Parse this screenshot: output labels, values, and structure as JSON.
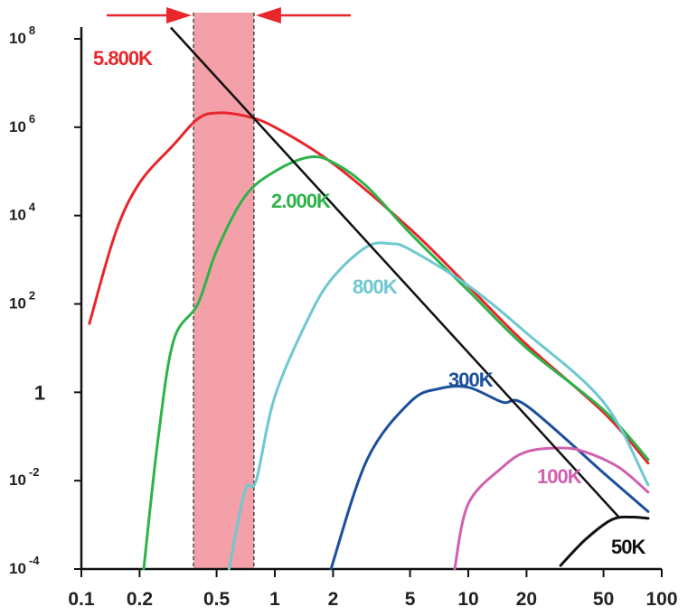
{
  "chart_data": {
    "type": "line",
    "title": "",
    "xlabel": "",
    "ylabel": "",
    "x_scale": "log",
    "y_scale": "log",
    "xlim": [
      0.1,
      100
    ],
    "ylim": [
      0.0001,
      100000000
    ],
    "x_ticks": [
      {
        "value": 0.1,
        "label": "0.1"
      },
      {
        "value": 0.2,
        "label": "0.2"
      },
      {
        "value": 0.5,
        "label": "0.5"
      },
      {
        "value": 1,
        "label": "1"
      },
      {
        "value": 2,
        "label": "2"
      },
      {
        "value": 5,
        "label": "5"
      },
      {
        "value": 10,
        "label": "10"
      },
      {
        "value": 20,
        "label": "20"
      },
      {
        "value": 50,
        "label": "50"
      },
      {
        "value": 100,
        "label": "100"
      }
    ],
    "y_ticks": [
      {
        "value": 100000000,
        "base": "10",
        "exp": "8"
      },
      {
        "value": 1000000,
        "base": "10",
        "exp": "6"
      },
      {
        "value": 10000,
        "base": "10",
        "exp": "4"
      },
      {
        "value": 100,
        "base": "10",
        "exp": "2"
      },
      {
        "value": 1,
        "base": "1",
        "exp": ""
      },
      {
        "value": 0.01,
        "base": "10",
        "exp": "-2"
      },
      {
        "value": 0.0001,
        "base": "10",
        "exp": "-4"
      }
    ],
    "grid": false,
    "highlight_band": {
      "x": [
        0.38,
        0.78
      ],
      "color": "#f4a0a8"
    },
    "series": [
      {
        "name": "5.800K",
        "color": "#e8262b",
        "points": [
          [
            0.11,
            36
          ],
          [
            0.15,
            4000
          ],
          [
            0.2,
            55000
          ],
          [
            0.3,
            400000
          ],
          [
            0.4,
            1550000
          ],
          [
            0.5,
            2100000
          ],
          [
            0.7,
            1800000
          ],
          [
            1,
            1000000
          ],
          [
            2,
            150000
          ],
          [
            5,
            5000
          ],
          [
            10,
            250
          ],
          [
            20,
            12
          ],
          [
            50,
            0.35
          ],
          [
            85,
            0.025
          ]
        ]
      },
      {
        "name": "2.000K",
        "color": "#2db34a",
        "points": [
          [
            0.21,
            0.0001
          ],
          [
            0.25,
            0.1
          ],
          [
            0.3,
            15
          ],
          [
            0.4,
            100
          ],
          [
            0.5,
            1600
          ],
          [
            0.7,
            27000
          ],
          [
            1,
            100000
          ],
          [
            1.5,
            210000
          ],
          [
            2,
            160000
          ],
          [
            3,
            45000
          ],
          [
            5,
            4000
          ],
          [
            10,
            200
          ],
          [
            20,
            10
          ],
          [
            50,
            0.4
          ],
          [
            85,
            0.03
          ]
        ]
      },
      {
        "name": "800K",
        "color": "#6ec8d0",
        "points": [
          [
            0.58,
            0.0001
          ],
          [
            0.7,
            0.006
          ],
          [
            0.8,
            0.01
          ],
          [
            1,
            0.8
          ],
          [
            1.5,
            50
          ],
          [
            2,
            400
          ],
          [
            3,
            2000
          ],
          [
            4,
            2300
          ],
          [
            5,
            1700
          ],
          [
            10,
            260
          ],
          [
            20,
            22
          ],
          [
            50,
            0.6
          ],
          [
            85,
            0.008
          ]
        ]
      },
      {
        "name": "300K",
        "color": "#1c4f9c",
        "points": [
          [
            1.95,
            0.0001
          ],
          [
            3,
            0.03
          ],
          [
            5,
            0.6
          ],
          [
            7,
            1.2
          ],
          [
            10,
            1.3
          ],
          [
            15,
            0.6
          ],
          [
            20,
            0.5
          ],
          [
            50,
            0.015
          ],
          [
            85,
            0.002
          ]
        ]
      },
      {
        "name": "100K",
        "color": "#d060b0",
        "points": [
          [
            8.5,
            0.0001
          ],
          [
            10,
            0.003
          ],
          [
            15,
            0.02
          ],
          [
            20,
            0.045
          ],
          [
            30,
            0.055
          ],
          [
            40,
            0.045
          ],
          [
            60,
            0.02
          ],
          [
            85,
            0.0055
          ]
        ]
      },
      {
        "name": "50K",
        "color": "#111111",
        "points": [
          [
            30,
            0.00012
          ],
          [
            40,
            0.00045
          ],
          [
            55,
            0.0013
          ],
          [
            70,
            0.0015
          ],
          [
            85,
            0.0014
          ]
        ]
      }
    ],
    "peak_line": {
      "color": "#111111",
      "points": [
        [
          0.29,
          180000000
        ],
        [
          60,
          0.0015
        ]
      ]
    }
  }
}
